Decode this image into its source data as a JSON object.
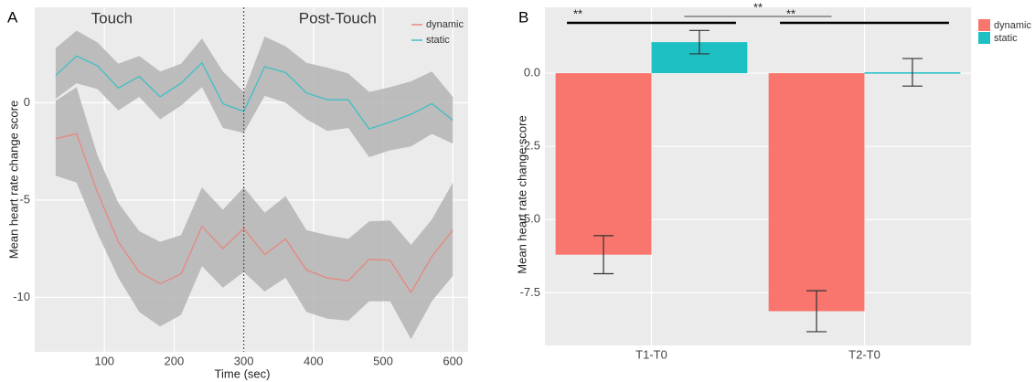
{
  "chart_data": [
    {
      "type": "line",
      "panel_label": "A",
      "xlabel": "Time (sec)",
      "ylabel": "Mean heart rate change score",
      "x": [
        30,
        60,
        90,
        120,
        150,
        180,
        210,
        240,
        270,
        300,
        330,
        360,
        390,
        420,
        450,
        480,
        510,
        540,
        570,
        600
      ],
      "series": [
        {
          "name": "dynamic",
          "color": "#e8877e",
          "values": [
            -1.85,
            -1.6,
            -4.6,
            -7.15,
            -8.7,
            -9.3,
            -8.8,
            -6.35,
            -7.5,
            -6.45,
            -7.8,
            -7.0,
            -8.6,
            -9.0,
            -9.15,
            -8.05,
            -8.1,
            -9.75,
            -7.9,
            -6.55
          ],
          "upper": [
            0.1,
            0.8,
            -2.7,
            -5.15,
            -6.6,
            -7.15,
            -6.8,
            -4.35,
            -5.5,
            -4.35,
            -5.65,
            -4.8,
            -6.55,
            -6.8,
            -7.0,
            -6.1,
            -6.05,
            -7.3,
            -6.0,
            -4.1
          ],
          "lower": [
            -3.75,
            -4.1,
            -6.7,
            -9.0,
            -10.75,
            -11.5,
            -10.9,
            -8.4,
            -9.5,
            -8.7,
            -9.7,
            -9.0,
            -10.75,
            -11.1,
            -11.2,
            -10.2,
            -10.2,
            -12.15,
            -10.2,
            -8.9
          ]
        },
        {
          "name": "static",
          "color": "#3fbfc4",
          "values": [
            1.4,
            2.4,
            1.9,
            0.75,
            1.35,
            0.3,
            1.0,
            2.05,
            -0.05,
            -0.45,
            1.85,
            1.55,
            0.5,
            0.15,
            0.15,
            -1.35,
            -1.0,
            -0.6,
            -0.05,
            -0.9
          ],
          "upper": [
            2.8,
            3.7,
            3.1,
            2.0,
            2.4,
            1.6,
            2.0,
            3.3,
            1.6,
            0.55,
            3.4,
            2.9,
            2.05,
            1.8,
            1.5,
            0.55,
            0.8,
            1.1,
            1.6,
            0.3
          ],
          "lower": [
            0.2,
            1.0,
            0.7,
            -0.4,
            0.3,
            -0.85,
            -0.15,
            0.8,
            -1.3,
            -1.55,
            0.35,
            0.0,
            -0.85,
            -1.45,
            -1.3,
            -2.8,
            -2.45,
            -2.25,
            -1.6,
            -2.1
          ]
        }
      ],
      "band_color": "#b4b4b4",
      "xlim": [
        0,
        622
      ],
      "ylim": [
        -12.8,
        4.9
      ],
      "xticks": [
        100,
        200,
        300,
        400,
        500,
        600
      ],
      "yticks": [
        -10,
        -5,
        0
      ],
      "grid": true,
      "vline": 300,
      "annotations": [
        "Touch",
        "Post-Touch"
      ],
      "legend": "top-right"
    },
    {
      "type": "bar",
      "panel_label": "B",
      "ylabel": "Mean heart rate change score",
      "categories": [
        "T1-T0",
        "T2-T0"
      ],
      "series": [
        {
          "name": "dynamic",
          "color": "#f8766d",
          "values": [
            -6.2,
            -8.13
          ],
          "errors": [
            0.65,
            0.7
          ]
        },
        {
          "name": "static",
          "color": "#1fc0c4",
          "values": [
            1.06,
            0.03
          ],
          "errors": [
            0.4,
            0.47
          ]
        }
      ],
      "ylim": [
        -9.3,
        2.25
      ],
      "yticks": [
        {
          "value": -7.5,
          "label": "-7.5"
        },
        {
          "value": -5,
          "label": "-5.0"
        },
        {
          "value": -2.5,
          "label": "-2.5"
        },
        {
          "value": 0,
          "label": "0.0"
        }
      ],
      "grid": true,
      "annotations": [
        "**",
        "**",
        "**"
      ],
      "legend": "right"
    }
  ]
}
